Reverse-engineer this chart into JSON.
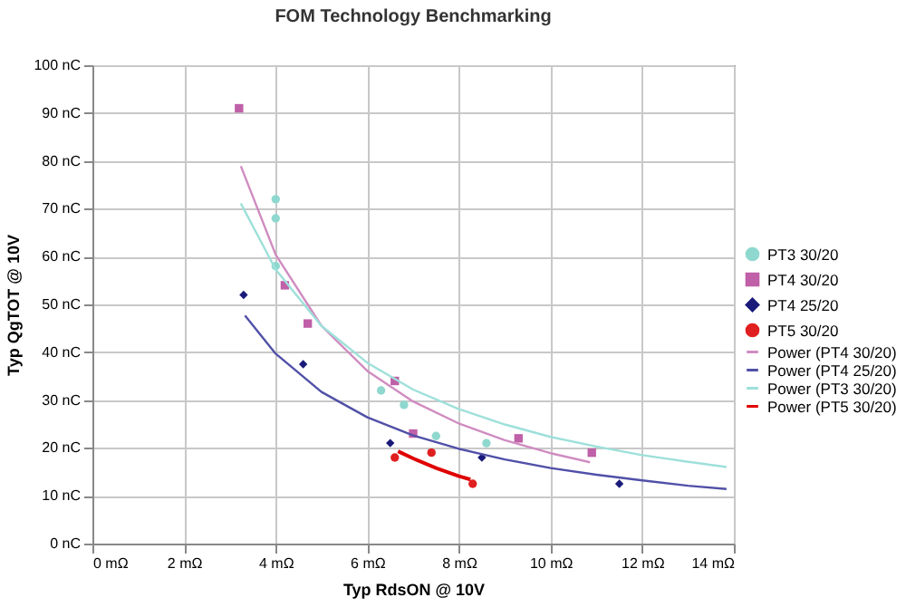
{
  "chart_data": {
    "type": "scatter",
    "title": "FOM Technology Benchmarking",
    "xlabel": "Typ RdsON @ 10V",
    "ylabel": "Typ QgTOT @ 10V",
    "xlim": [
      0,
      14
    ],
    "xticks": [
      {
        "value": 0,
        "label": "0 mΩ"
      },
      {
        "value": 2,
        "label": "2 mΩ"
      },
      {
        "value": 4,
        "label": "4 mΩ"
      },
      {
        "value": 6,
        "label": "6 mΩ"
      },
      {
        "value": 8,
        "label": "8 mΩ"
      },
      {
        "value": 10,
        "label": "10 mΩ"
      },
      {
        "value": 12,
        "label": "12 mΩ"
      },
      {
        "value": 14,
        "label": "14 mΩ"
      }
    ],
    "ylim": [
      0,
      100
    ],
    "yticks": [
      {
        "value": 0,
        "label": "0 nC"
      },
      {
        "value": 10,
        "label": "10 nC"
      },
      {
        "value": 20,
        "label": "20 nC"
      },
      {
        "value": 30,
        "label": "30 nC"
      },
      {
        "value": 40,
        "label": "40 nC"
      },
      {
        "value": 50,
        "label": "50 nC"
      },
      {
        "value": 60,
        "label": "60 nC"
      },
      {
        "value": 70,
        "label": "70 nC"
      },
      {
        "value": 80,
        "label": "80 nC"
      },
      {
        "value": 90,
        "label": "90 nC"
      },
      {
        "value": 100,
        "label": "100 nC"
      }
    ],
    "grid": true,
    "legend": "right",
    "series": [
      {
        "name": "PT3 30/20",
        "marker": "circle",
        "color": "#8fd8cf",
        "x": [
          4.0,
          4.0,
          4.0,
          6.3,
          6.8,
          7.5,
          8.6
        ],
        "values": [
          72,
          68,
          58,
          32,
          29,
          22.5,
          21
        ]
      },
      {
        "name": "PT4 30/20",
        "marker": "square",
        "color": "#c060a8",
        "x": [
          3.2,
          4.2,
          4.7,
          6.6,
          7.0,
          9.3,
          10.9
        ],
        "values": [
          91,
          54,
          46,
          34,
          23,
          22,
          19
        ]
      },
      {
        "name": "PT4 25/20",
        "marker": "diamond",
        "color": "#1a1a7a",
        "x": [
          3.3,
          4.6,
          6.5,
          8.5,
          11.5
        ],
        "values": [
          52,
          37.5,
          21,
          18,
          12.5
        ]
      },
      {
        "name": "PT5 30/20",
        "marker": "circle",
        "color": "#e02020",
        "x": [
          6.6,
          7.4,
          8.3
        ],
        "values": [
          18,
          19,
          12.5
        ]
      },
      {
        "name": "Power (PT4 30/20)",
        "type": "line",
        "color": "#d08cc0",
        "x": [
          3.24,
          4,
          5,
          6,
          7,
          8,
          9,
          10,
          10.86
        ],
        "values": [
          78.9,
          60.4,
          45.5,
          36.1,
          29.7,
          25.1,
          21.6,
          18.9,
          17
        ]
      },
      {
        "name": "Power (PT4 25/20)",
        "type": "line",
        "color": "#5050a8",
        "x": [
          3.33,
          4,
          5,
          6,
          7,
          8,
          9,
          10,
          11,
          12,
          13,
          13.84
        ],
        "values": [
          47.7,
          39.7,
          31.7,
          26.4,
          22.6,
          19.8,
          17.6,
          15.8,
          14.4,
          13.2,
          12.1,
          11.4
        ]
      },
      {
        "name": "Power (PT3 30/20)",
        "type": "line",
        "color": "#9ee0da",
        "x": [
          3.24,
          4,
          5,
          6,
          7,
          8,
          9,
          10,
          11,
          12,
          13,
          13.84
        ],
        "values": [
          71.1,
          57.3,
          45.5,
          37.8,
          32.2,
          28.1,
          24.9,
          22.3,
          20.3,
          18.5,
          17.1,
          16
        ]
      },
      {
        "name": "Power (PT5 30/20)",
        "type": "line",
        "color": "#e00000",
        "x": [
          6.67,
          7,
          7.5,
          8,
          8.25
        ],
        "values": [
          19.3,
          17.8,
          15.8,
          14.1,
          13.4
        ]
      }
    ]
  }
}
